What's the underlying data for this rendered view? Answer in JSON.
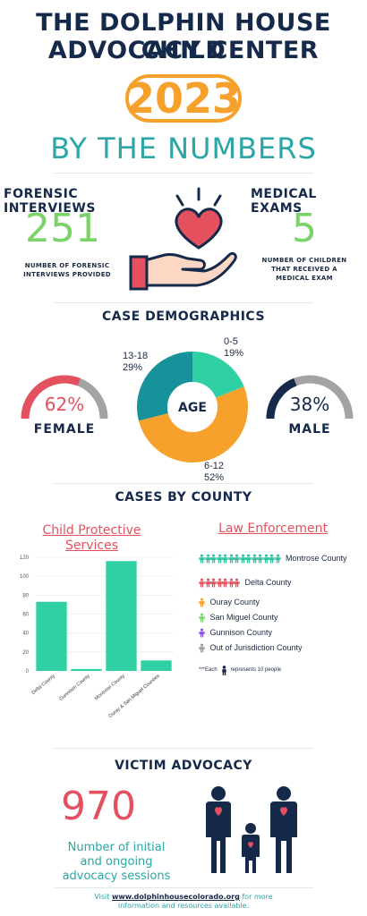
{
  "header": {
    "title_line1": "THE DOLPHIN HOUSE CHILD",
    "title_line2": "ADVOCACY CENTER",
    "year": "2023",
    "subtitle": "BY THE NUMBERS"
  },
  "forensic": {
    "heading": "FORENSIC INTERVIEWS",
    "value": "251",
    "caption_line1": "NUMBER OF FORENSIC",
    "caption_line2": "INTERVIEWS PROVIDED"
  },
  "medical": {
    "heading": "MEDICAL EXAMS",
    "value": "5",
    "caption_line1": "NUMBER OF CHILDREN",
    "caption_line2": "THAT RECEIVED A",
    "caption_line3": "MEDICAL EXAM"
  },
  "demographics": {
    "heading": "CASE DEMOGRAPHICS",
    "female": {
      "percent_label": "62%",
      "label": "FEMALE",
      "fraction": 0.62
    },
    "male": {
      "percent_label": "38%",
      "label": "MALE",
      "fraction": 0.38
    },
    "age_center": "AGE",
    "age_labels": [
      {
        "range": "0-5",
        "pct": "19%"
      },
      {
        "range": "6-12",
        "pct": "52%"
      },
      {
        "range": "13-18",
        "pct": "29%"
      }
    ]
  },
  "county": {
    "heading": "CASES BY COUNTY",
    "cps_title_line1": "Child Protective",
    "cps_title_line2": "Services",
    "le_title": "Law Enforcement",
    "legend": [
      {
        "label": "Montrose County",
        "icons": 14,
        "color": "#2fc09e"
      },
      {
        "label": "Delta County",
        "icons": 7,
        "color": "#e4505e"
      },
      {
        "label": "Ouray County",
        "icons": 1,
        "color": "#f7a12d"
      },
      {
        "label": "San Miguel County",
        "icons": 1,
        "color": "#7cd26a"
      },
      {
        "label": "Gunnison County",
        "icons": 1,
        "color": "#8a4fd8"
      },
      {
        "label": "Out of Jurisdiction County",
        "icons": 1,
        "color": "#9a9a9a"
      }
    ],
    "note_prefix": "***Each",
    "note_suffix": "represents 10 people"
  },
  "chart_data": {
    "type": "bar",
    "categories": [
      "Delta County",
      "Gunnison County",
      "Montrose County",
      "Ouray & San Miguel Counties"
    ],
    "values": [
      73,
      2,
      116,
      11
    ],
    "ylim": [
      0,
      120
    ],
    "yticks": [
      "0",
      "20",
      "40",
      "60",
      "80",
      "100",
      "120"
    ],
    "title": "Child Protective Services",
    "xlabel": "",
    "ylabel": "",
    "color": "#2fd0a3"
  },
  "victim": {
    "heading": "VICTIM ADVOCACY",
    "value": "970",
    "text_line1": "Number of initial",
    "text_line2": "and ongoing",
    "text_line3": "advocacy sessions"
  },
  "footer": {
    "prefix": "Visit",
    "link": "www.dolphinhousecolorado.org",
    "suffix": "for more",
    "line2": "information and resources available."
  },
  "colors": {
    "navy": "#15294a",
    "teal": "#2aa6a6",
    "green": "#7cd26a",
    "orange": "#f7a12d",
    "pink": "#e4505e",
    "mint": "#2fd0a3",
    "gray": "#a3a3a3"
  }
}
